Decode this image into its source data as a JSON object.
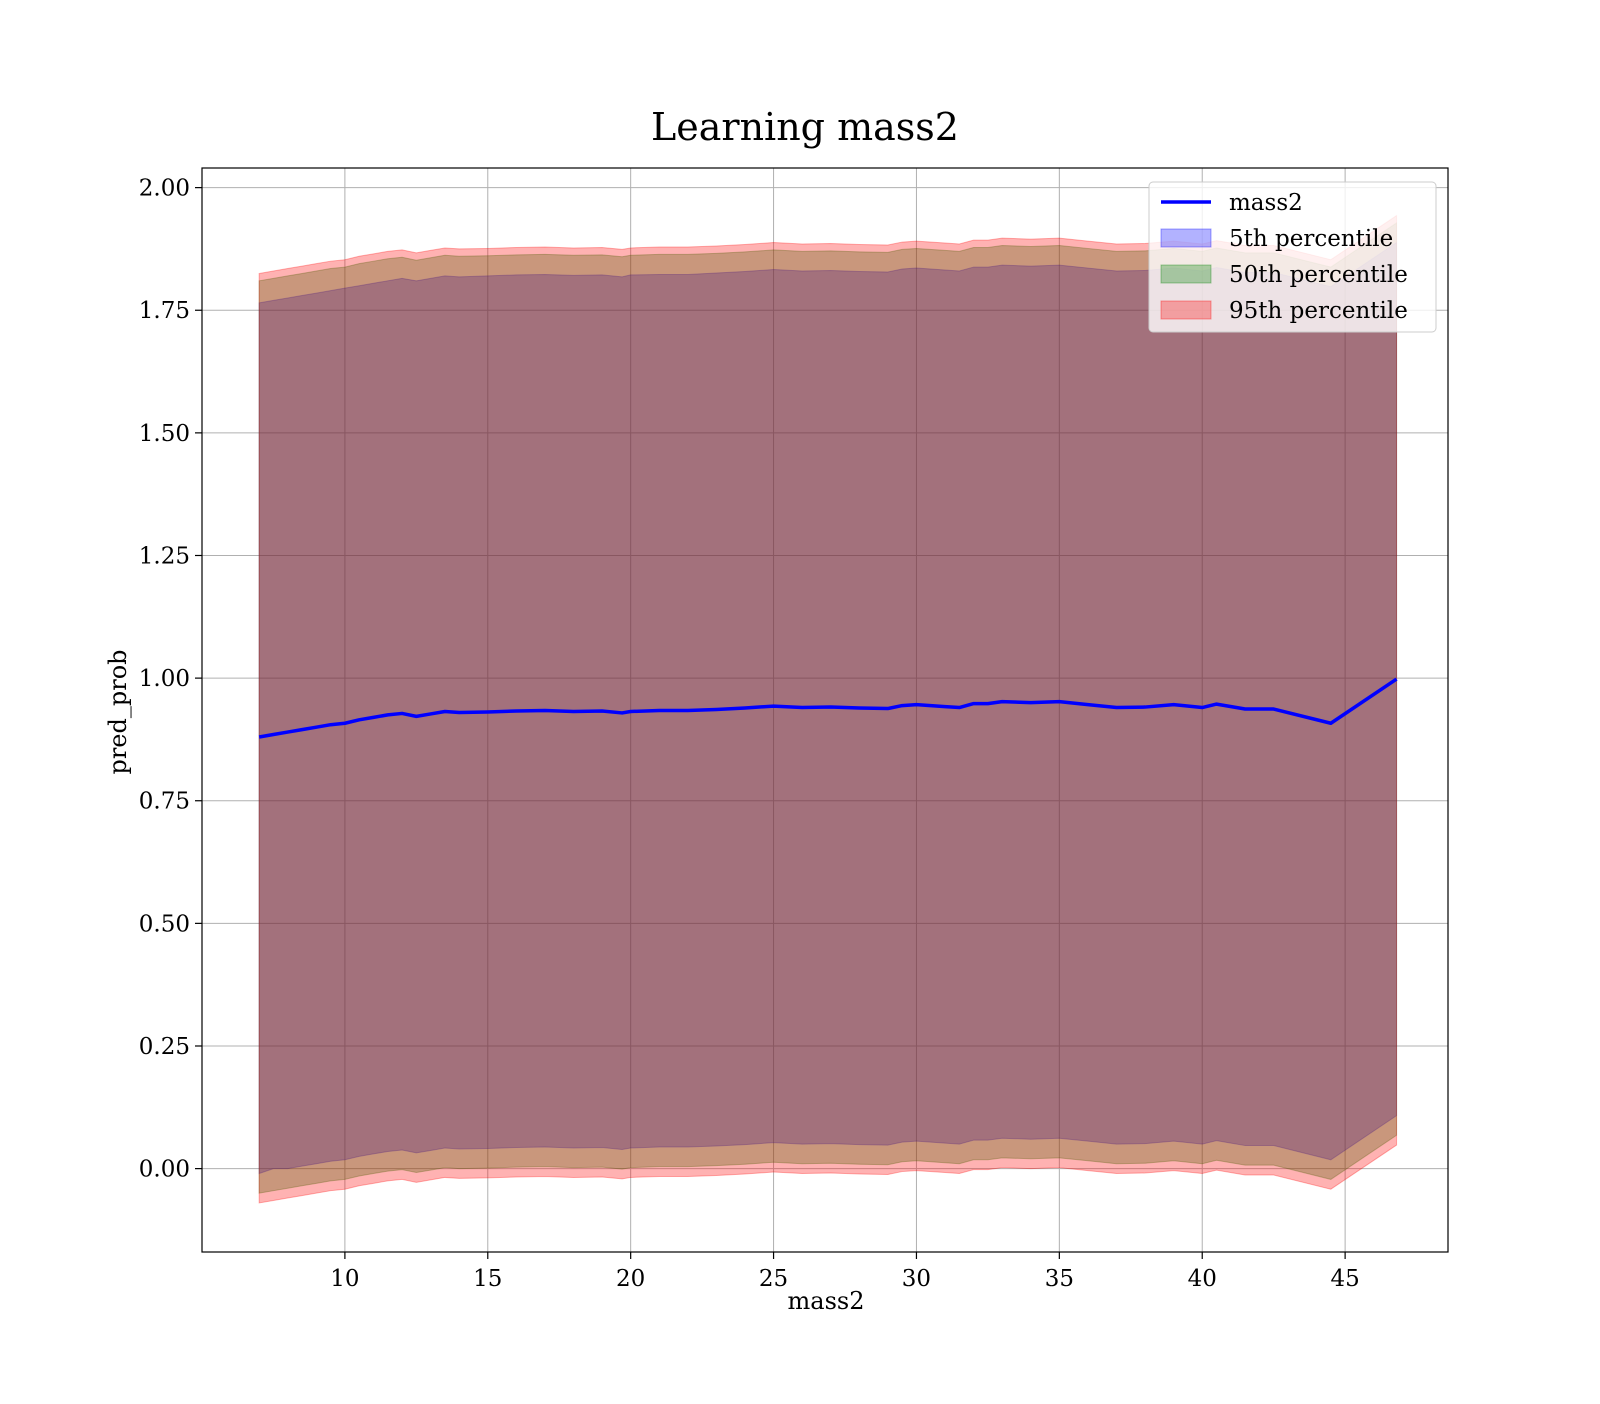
{
  "chart_data": {
    "type": "area",
    "title": "Learning mass2",
    "xlabel": "mass2",
    "ylabel": "pred_prob",
    "xlim": [
      5.0,
      48.6
    ],
    "ylim": [
      -0.17,
      2.04
    ],
    "xticks": [
      10,
      15,
      20,
      25,
      30,
      35,
      40,
      45
    ],
    "xtick_labels": [
      "10",
      "15",
      "20",
      "25",
      "30",
      "35",
      "40",
      "45"
    ],
    "yticks": [
      0.0,
      0.25,
      0.5,
      0.75,
      1.0,
      1.25,
      1.5,
      1.75,
      2.0
    ],
    "ytick_labels": [
      "0.00",
      "0.25",
      "0.50",
      "0.75",
      "1.00",
      "1.25",
      "1.50",
      "1.75",
      "2.00"
    ],
    "grid": true,
    "legend_position": "top-right",
    "x": [
      7.0,
      7.5,
      8.0,
      8.5,
      9.0,
      9.5,
      10.0,
      10.5,
      11.0,
      11.5,
      12.0,
      12.5,
      13.0,
      13.5,
      14.0,
      15.0,
      16.0,
      17.0,
      18.0,
      19.0,
      19.7,
      20.0,
      21.0,
      22.0,
      23.0,
      24.0,
      25.0,
      26.0,
      27.0,
      28.0,
      29.0,
      29.5,
      30.0,
      31.0,
      31.5,
      32.0,
      32.5,
      33.0,
      34.0,
      35.0,
      36.0,
      37.0,
      38.0,
      39.0,
      40.0,
      40.5,
      41.5,
      42.5,
      44.5,
      46.8
    ],
    "series": [
      {
        "name": "mass2",
        "kind": "line",
        "color": "#0000ff",
        "values": [
          0.88,
          0.885,
          0.89,
          0.895,
          0.9,
          0.905,
          0.908,
          0.915,
          0.92,
          0.925,
          0.928,
          0.922,
          0.927,
          0.932,
          0.93,
          0.931,
          0.933,
          0.934,
          0.932,
          0.933,
          0.929,
          0.932,
          0.934,
          0.934,
          0.936,
          0.939,
          0.943,
          0.94,
          0.941,
          0.939,
          0.938,
          0.944,
          0.946,
          0.942,
          0.94,
          0.948,
          0.948,
          0.952,
          0.95,
          0.952,
          0.946,
          0.94,
          0.941,
          0.946,
          0.94,
          0.947,
          0.937,
          0.937,
          0.908,
          0.998
        ]
      },
      {
        "name": "5th percentile",
        "kind": "band",
        "color": "#0000ff",
        "lower": [
          -0.01,
          0.0,
          0.0,
          0.005,
          0.01,
          0.015,
          0.018,
          0.025,
          0.03,
          0.035,
          0.038,
          0.032,
          0.037,
          0.042,
          0.04,
          0.041,
          0.043,
          0.044,
          0.042,
          0.043,
          0.039,
          0.042,
          0.044,
          0.044,
          0.046,
          0.049,
          0.053,
          0.05,
          0.051,
          0.049,
          0.048,
          0.054,
          0.056,
          0.052,
          0.05,
          0.058,
          0.058,
          0.062,
          0.06,
          0.062,
          0.056,
          0.05,
          0.051,
          0.056,
          0.05,
          0.057,
          0.047,
          0.047,
          0.018,
          0.108
        ],
        "upper": [
          1.765,
          1.77,
          1.775,
          1.78,
          1.785,
          1.79,
          1.795,
          1.8,
          1.805,
          1.81,
          1.815,
          1.81,
          1.815,
          1.82,
          1.818,
          1.82,
          1.822,
          1.823,
          1.821,
          1.822,
          1.818,
          1.822,
          1.823,
          1.823,
          1.826,
          1.829,
          1.833,
          1.83,
          1.831,
          1.829,
          1.828,
          1.834,
          1.836,
          1.832,
          1.83,
          1.838,
          1.838,
          1.842,
          1.84,
          1.842,
          1.836,
          1.83,
          1.831,
          1.836,
          1.83,
          1.837,
          1.827,
          1.827,
          1.798,
          1.888
        ]
      },
      {
        "name": "50th percentile",
        "kind": "band",
        "color": "#008000",
        "lower": [
          -0.05,
          -0.045,
          -0.04,
          -0.035,
          -0.03,
          -0.025,
          -0.022,
          -0.015,
          -0.01,
          -0.005,
          -0.002,
          -0.008,
          -0.003,
          0.002,
          0.0,
          0.001,
          0.003,
          0.004,
          0.002,
          0.003,
          -0.001,
          0.002,
          0.004,
          0.004,
          0.006,
          0.009,
          0.013,
          0.01,
          0.011,
          0.009,
          0.008,
          0.014,
          0.016,
          0.012,
          0.01,
          0.018,
          0.018,
          0.022,
          0.02,
          0.022,
          0.016,
          0.01,
          0.011,
          0.016,
          0.01,
          0.017,
          0.007,
          0.007,
          -0.022,
          0.068
        ],
        "upper": [
          1.81,
          1.815,
          1.82,
          1.825,
          1.83,
          1.835,
          1.838,
          1.845,
          1.85,
          1.855,
          1.858,
          1.852,
          1.857,
          1.862,
          1.86,
          1.861,
          1.863,
          1.864,
          1.862,
          1.863,
          1.859,
          1.862,
          1.864,
          1.864,
          1.866,
          1.869,
          1.873,
          1.87,
          1.871,
          1.869,
          1.868,
          1.874,
          1.876,
          1.872,
          1.87,
          1.878,
          1.878,
          1.882,
          1.88,
          1.882,
          1.876,
          1.87,
          1.871,
          1.876,
          1.87,
          1.877,
          1.867,
          1.867,
          1.838,
          1.928
        ]
      },
      {
        "name": "95th percentile",
        "kind": "band",
        "color": "#ff0000",
        "lower": [
          -0.07,
          -0.065,
          -0.06,
          -0.055,
          -0.05,
          -0.045,
          -0.042,
          -0.035,
          -0.03,
          -0.025,
          -0.022,
          -0.028,
          -0.023,
          -0.018,
          -0.02,
          -0.019,
          -0.017,
          -0.016,
          -0.018,
          -0.017,
          -0.021,
          -0.018,
          -0.016,
          -0.016,
          -0.014,
          -0.011,
          -0.007,
          -0.01,
          -0.009,
          -0.011,
          -0.012,
          -0.006,
          -0.004,
          -0.008,
          -0.01,
          -0.002,
          -0.002,
          0.002,
          0.0,
          0.002,
          -0.004,
          -0.01,
          -0.009,
          -0.004,
          -0.01,
          -0.003,
          -0.013,
          -0.013,
          -0.042,
          0.048
        ],
        "upper": [
          1.825,
          1.83,
          1.835,
          1.84,
          1.845,
          1.85,
          1.853,
          1.86,
          1.865,
          1.87,
          1.873,
          1.867,
          1.872,
          1.877,
          1.875,
          1.876,
          1.878,
          1.879,
          1.877,
          1.878,
          1.874,
          1.877,
          1.879,
          1.879,
          1.881,
          1.884,
          1.888,
          1.885,
          1.886,
          1.884,
          1.883,
          1.889,
          1.891,
          1.887,
          1.885,
          1.893,
          1.893,
          1.897,
          1.895,
          1.897,
          1.891,
          1.885,
          1.886,
          1.891,
          1.885,
          1.892,
          1.882,
          1.882,
          1.853,
          1.943
        ]
      }
    ],
    "legend": [
      {
        "label": "mass2",
        "kind": "line",
        "color": "#0000ff"
      },
      {
        "label": "5th percentile",
        "kind": "patch",
        "color": "#0000ff"
      },
      {
        "label": "50th percentile",
        "kind": "patch",
        "color": "#008000"
      },
      {
        "label": "95th percentile",
        "kind": "patch",
        "color": "#ff0000"
      }
    ]
  }
}
